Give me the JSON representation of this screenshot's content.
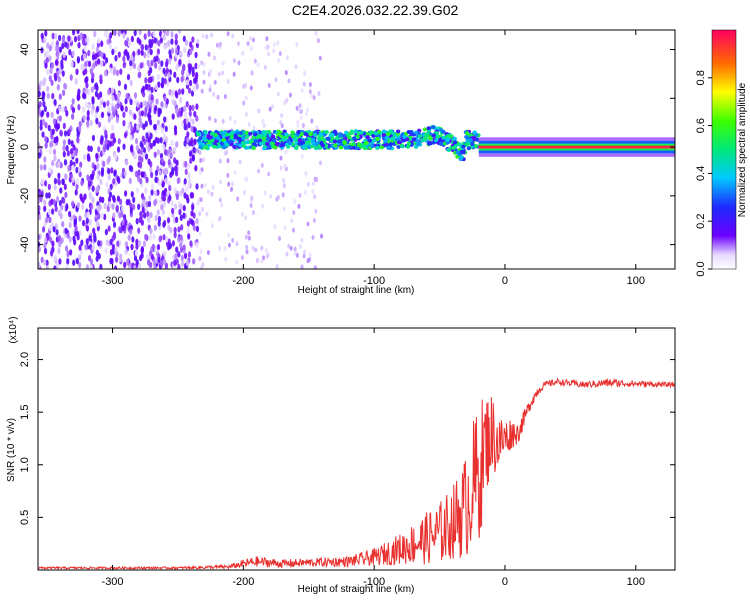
{
  "title": "C2E4.2026.032.22.39.G02",
  "colors": {
    "snr_line": "#e8302e",
    "axis": "#000000"
  },
  "chart_data": [
    {
      "type": "heatmap",
      "name": "spectrogram",
      "xlabel": "Height of straight line (km)",
      "ylabel": "Frequency (Hz)",
      "xlim": [
        -357,
        130
      ],
      "ylim": [
        -50,
        48
      ],
      "xticks": [
        -300,
        -200,
        -100,
        0,
        100
      ],
      "xtick_labels": [
        "-300",
        "-200",
        "-100",
        "0",
        "100"
      ],
      "yticks": [
        -40,
        -20,
        0,
        20,
        40
      ],
      "ytick_labels": [
        "-40",
        "-20",
        "0",
        "20",
        "40"
      ],
      "colorbar": {
        "label": "Normalized spectral amplitude",
        "range": [
          0,
          1
        ],
        "ticks": [
          0.0,
          0.2,
          0.4,
          0.6,
          0.8
        ],
        "tick_labels": [
          "0.0",
          "0.2",
          "0.4",
          "0.6",
          "0.8"
        ]
      },
      "regions": [
        {
          "description_range_km": [
            -357,
            -235
          ],
          "feature": "broadband noise",
          "amplitude": 0.1
        },
        {
          "description_range_km": [
            -235,
            -20
          ],
          "feature": "scattered tone",
          "center_hz": 3,
          "spread_hz": 7,
          "amplitude": 0.35
        },
        {
          "description_range_km": [
            -20,
            130
          ],
          "feature": "stable carrier",
          "center_hz": 0,
          "spread_hz": 2,
          "amplitude": 0.95
        }
      ]
    },
    {
      "type": "line",
      "name": "snr",
      "xlabel": "Height of straight line (km)",
      "ylabel": "SNR (10 * v/v)",
      "multiplier_label": "(x10⁴)",
      "xlim": [
        -357,
        130
      ],
      "ylim": [
        0,
        2.3
      ],
      "xticks": [
        -300,
        -200,
        -100,
        0,
        100
      ],
      "xtick_labels": [
        "-300",
        "-200",
        "-100",
        "0",
        "100"
      ],
      "yticks": [
        0.5,
        1.0,
        1.5,
        2.0
      ],
      "ytick_labels": [
        "0.5",
        "1.0",
        "1.5",
        "2.0"
      ],
      "series": [
        {
          "name": "SNR",
          "x": [
            -357,
            -300,
            -250,
            -210,
            -200,
            -190,
            -170,
            -150,
            -120,
            -100,
            -80,
            -60,
            -50,
            -40,
            -30,
            -25,
            -20,
            -15,
            -10,
            -5,
            0,
            5,
            10,
            15,
            20,
            25,
            30,
            40,
            60,
            80,
            100,
            130
          ],
          "y": [
            0.02,
            0.02,
            0.02,
            0.03,
            0.06,
            0.08,
            0.06,
            0.07,
            0.08,
            0.12,
            0.2,
            0.3,
            0.35,
            0.45,
            0.6,
            0.8,
            0.9,
            1.2,
            1.3,
            1.2,
            1.25,
            1.3,
            1.3,
            1.45,
            1.6,
            1.7,
            1.76,
            1.79,
            1.76,
            1.78,
            1.77,
            1.76
          ],
          "noise": [
            0.01,
            0.01,
            0.01,
            0.02,
            0.04,
            0.05,
            0.04,
            0.04,
            0.05,
            0.08,
            0.15,
            0.25,
            0.3,
            0.35,
            0.5,
            0.6,
            0.7,
            0.5,
            0.4,
            0.3,
            0.2,
            0.15,
            0.1,
            0.08,
            0.06,
            0.05,
            0.03,
            0.03,
            0.03,
            0.04,
            0.03,
            0.02
          ]
        }
      ]
    }
  ]
}
